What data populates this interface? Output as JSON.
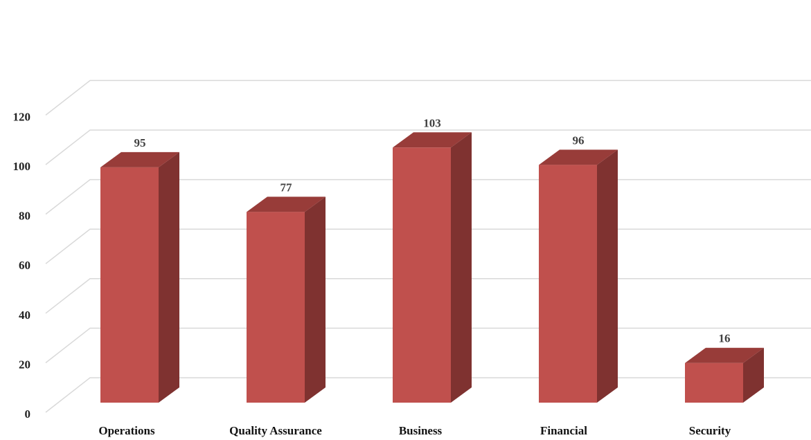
{
  "chart_data": {
    "type": "bar",
    "style": "3d-column",
    "categories": [
      "Operations",
      "Quality Assurance",
      "Business",
      "Financial",
      "Security"
    ],
    "values": [
      95,
      77,
      103,
      96,
      16
    ],
    "ylim": [
      0,
      120
    ],
    "yticks": [
      0,
      20,
      40,
      60,
      80,
      100,
      120
    ],
    "grid": true,
    "legend": "none",
    "data_labels": true,
    "colors": {
      "front": "#C0504D",
      "side": "#7F3230",
      "top": "#983C39",
      "grid": "#D9D9D9"
    }
  }
}
